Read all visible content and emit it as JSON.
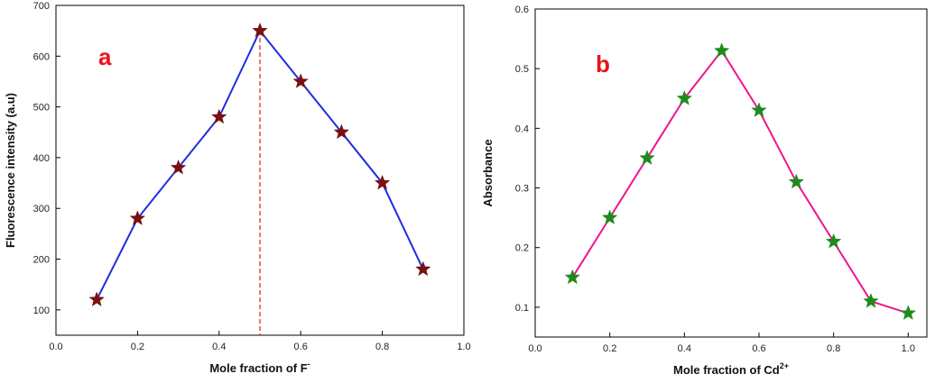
{
  "chart_data": [
    {
      "type": "line",
      "panel_label": "a",
      "xlabel": "Mole fraction of F",
      "xlabel_sup": "-",
      "ylabel": "Fluorescence intensity (a.u)",
      "xlim": [
        0.0,
        1.0
      ],
      "ylim": [
        50,
        700
      ],
      "xticks": [
        "0.0",
        "0.2",
        "0.4",
        "0.6",
        "0.8",
        "1.0"
      ],
      "yticks": [
        "100",
        "200",
        "300",
        "400",
        "500",
        "600",
        "700"
      ],
      "x": [
        0.1,
        0.2,
        0.3,
        0.4,
        0.5,
        0.6,
        0.7,
        0.8,
        0.9
      ],
      "series": [
        {
          "values": [
            120,
            280,
            380,
            480,
            650,
            550,
            450,
            350,
            180
          ]
        }
      ],
      "marker": "star",
      "line_color": "#1f2de0",
      "marker_color": "#7a1010",
      "vline": {
        "x": 0.5,
        "color": "#e01818",
        "style": "dashed"
      },
      "label_color": "#e8141c",
      "grid": false
    },
    {
      "type": "line",
      "panel_label": "b",
      "xlabel": "Mole fraction of Cd",
      "xlabel_sup": "2+",
      "ylabel": "Absorbance",
      "xlim": [
        0.0,
        1.05
      ],
      "ylim": [
        0.05,
        0.6
      ],
      "xticks": [
        "0.0",
        "0.2",
        "0.4",
        "0.6",
        "0.8",
        "1.0"
      ],
      "yticks": [
        "0.1",
        "0.2",
        "0.3",
        "0.4",
        "0.5",
        "0.6"
      ],
      "x": [
        0.1,
        0.2,
        0.3,
        0.4,
        0.5,
        0.6,
        0.7,
        0.8,
        0.9,
        1.0
      ],
      "series": [
        {
          "values": [
            0.15,
            0.25,
            0.35,
            0.45,
            0.53,
            0.43,
            0.31,
            0.21,
            0.11,
            0.09
          ]
        }
      ],
      "marker": "star",
      "line_color": "#f0148c",
      "marker_color": "#1e8a1e",
      "label_color": "#e8141c",
      "grid": false
    }
  ]
}
